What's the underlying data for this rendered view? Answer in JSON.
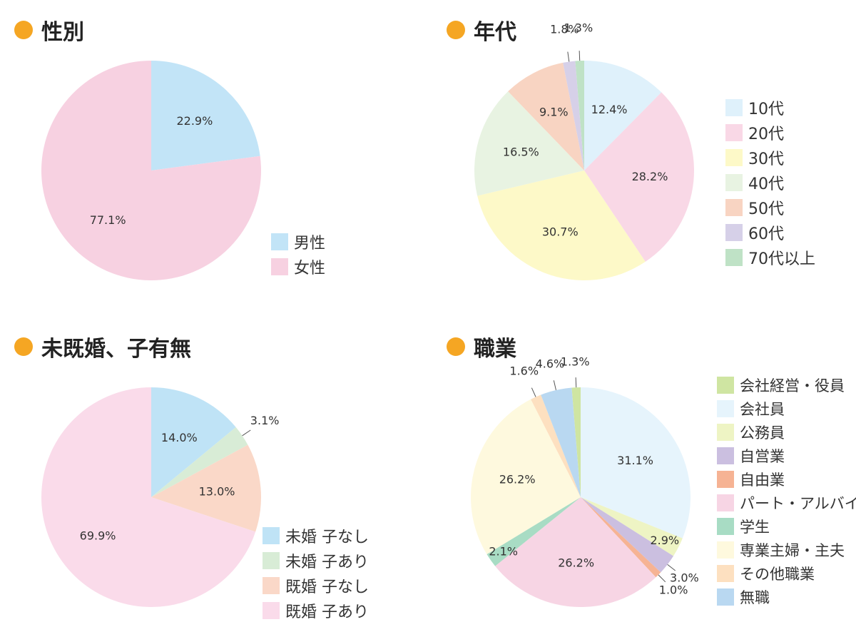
{
  "titles": {
    "gender": "性別",
    "age": "年代",
    "marital": "未既婚、子有無",
    "job": "職業"
  },
  "legends": {
    "gender": [
      "男性",
      "女性"
    ],
    "age": [
      "10代",
      "20代",
      "30代",
      "40代",
      "50代",
      "60代",
      "70代以上"
    ],
    "marital": [
      "未婚 子なし",
      "未婚 子あり",
      "既婚 子なし",
      "既婚 子あり"
    ],
    "job": [
      "会社経営・役員",
      "会社員",
      "公務員",
      "自営業",
      "自由業",
      "パート・アルバイト",
      "学生",
      "専業主婦・主夫",
      "その他職業",
      "無職"
    ]
  },
  "chart_data": [
    {
      "type": "pie",
      "title": "性別",
      "categories": [
        "男性",
        "女性"
      ],
      "values": [
        22.9,
        77.1
      ],
      "labels": [
        "22.9%",
        "77.1%"
      ],
      "colors": [
        "#c2e4f7",
        "#f7d1e1"
      ],
      "legend": "right"
    },
    {
      "type": "pie",
      "title": "年代",
      "categories": [
        "10代",
        "20代",
        "30代",
        "40代",
        "50代",
        "60代",
        "70代以上"
      ],
      "values": [
        12.4,
        28.2,
        30.7,
        16.5,
        9.1,
        1.8,
        1.3
      ],
      "labels": [
        "12.4%",
        "28.2%",
        "30.7%",
        "16.5%",
        "9.1%",
        "1.8%",
        "1.3%"
      ],
      "colors": [
        "#dff1fb",
        "#f9d8e6",
        "#fdf9c8",
        "#e8f3e2",
        "#f8d4c2",
        "#d6d0e8",
        "#bfe2c6"
      ],
      "legend": "right"
    },
    {
      "type": "pie",
      "title": "未既婚、子有無",
      "categories": [
        "未婚 子なし",
        "未婚 子あり",
        "既婚 子なし",
        "既婚 子あり"
      ],
      "values": [
        14.0,
        3.1,
        13.0,
        69.9
      ],
      "labels": [
        "14.0%",
        "3.1%",
        "13.0%",
        "69.9%"
      ],
      "colors": [
        "#bfe3f6",
        "#d8ecd6",
        "#fad8c8",
        "#fadbea"
      ],
      "legend": "right"
    },
    {
      "type": "pie",
      "title": "職業",
      "categories": [
        "会社員",
        "公務員",
        "自営業",
        "自由業",
        "パート・アルバイト",
        "学生",
        "専業主婦・主夫",
        "その他職業",
        "無職",
        "会社経営・役員"
      ],
      "values": [
        31.1,
        2.9,
        3.0,
        1.0,
        26.2,
        2.1,
        26.2,
        1.6,
        4.6,
        1.3
      ],
      "labels": [
        "31.1%",
        "2.9%",
        "3.0%",
        "1.0%",
        "26.2%",
        "2.1%",
        "26.2%",
        "1.6%",
        "4.6%",
        "1.3%"
      ],
      "colors": [
        "#e6f4fc",
        "#eef4c4",
        "#cbbfe0",
        "#f6b394",
        "#f7d5e4",
        "#a8dcc4",
        "#fef9de",
        "#fde0c0",
        "#b9d8f1",
        "#cfe5a2"
      ],
      "legend": "right"
    }
  ]
}
